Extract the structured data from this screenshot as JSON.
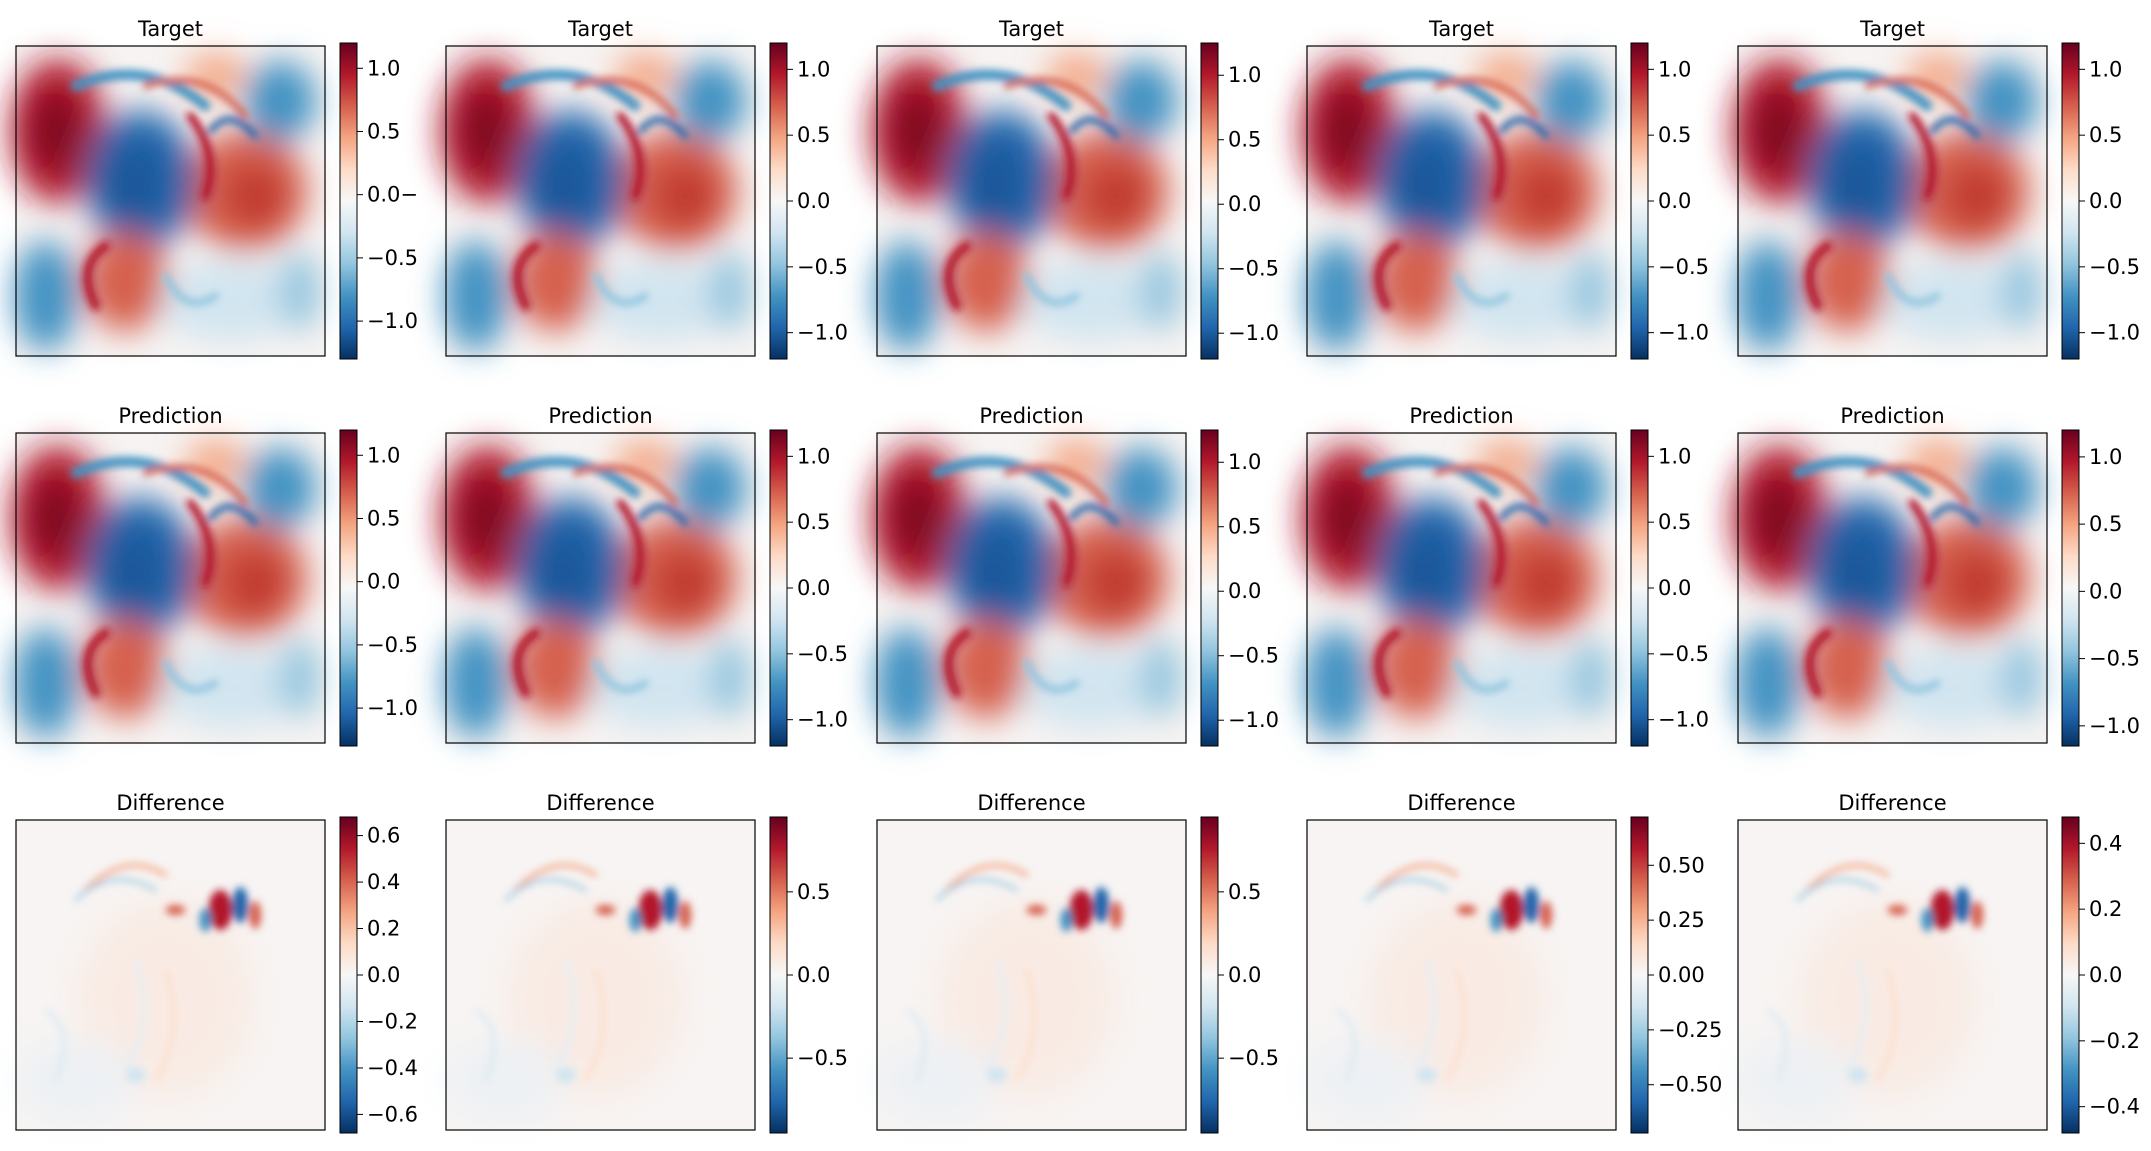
{
  "chart_data": [
    {
      "type": "heatmap",
      "title": "Target",
      "row": 0,
      "col": 0,
      "colorbar": {
        "min": -1.3,
        "max": 1.2,
        "ticks": [
          1.0,
          0.5,
          0.0,
          -0.5,
          -1.0
        ],
        "labels": [
          "1.0",
          "0.5",
          "0.0−",
          "−0.5",
          "−1.0"
        ]
      }
    },
    {
      "type": "heatmap",
      "title": "Target",
      "row": 0,
      "col": 1,
      "colorbar": {
        "min": -1.2,
        "max": 1.2,
        "ticks": [
          1.0,
          0.5,
          0.0,
          -0.5,
          -1.0
        ],
        "labels": [
          "1.0",
          "0.5",
          "0.0",
          "−0.5",
          "−1.0"
        ]
      }
    },
    {
      "type": "heatmap",
      "title": "Target",
      "row": 0,
      "col": 2,
      "colorbar": {
        "min": -1.2,
        "max": 1.25,
        "ticks": [
          1.0,
          0.5,
          0.0,
          -0.5,
          -1.0
        ],
        "labels": [
          "1.0",
          "0.5",
          "0.0",
          "−0.5",
          "−1.0"
        ]
      }
    },
    {
      "type": "heatmap",
      "title": "Target",
      "row": 0,
      "col": 3,
      "colorbar": {
        "min": -1.2,
        "max": 1.2,
        "ticks": [
          1.0,
          0.5,
          0.0,
          -0.5,
          -1.0
        ],
        "labels": [
          "1.0",
          "0.5",
          "0.0",
          "−0.5",
          "−1.0"
        ]
      }
    },
    {
      "type": "heatmap",
      "title": "Target",
      "row": 0,
      "col": 4,
      "colorbar": {
        "min": -1.2,
        "max": 1.2,
        "ticks": [
          1.0,
          0.5,
          0.0,
          -0.5,
          -1.0
        ],
        "labels": [
          "1.0",
          "0.5",
          "0.0",
          "−0.5",
          "−1.0"
        ]
      }
    },
    {
      "type": "heatmap",
      "title": "Prediction",
      "row": 1,
      "col": 0,
      "colorbar": {
        "min": -1.3,
        "max": 1.2,
        "ticks": [
          1.0,
          0.5,
          0.0,
          -0.5,
          -1.0
        ],
        "labels": [
          "1.0",
          "0.5",
          "0.0",
          "−0.5",
          "−1.0"
        ]
      }
    },
    {
      "type": "heatmap",
      "title": "Prediction",
      "row": 1,
      "col": 1,
      "colorbar": {
        "min": -1.2,
        "max": 1.2,
        "ticks": [
          1.0,
          0.5,
          0.0,
          -0.5,
          -1.0
        ],
        "labels": [
          "1.0",
          "0.5",
          "0.0",
          "−0.5",
          "−1.0"
        ]
      }
    },
    {
      "type": "heatmap",
      "title": "Prediction",
      "row": 1,
      "col": 2,
      "colorbar": {
        "min": -1.2,
        "max": 1.25,
        "ticks": [
          1.0,
          0.5,
          0.0,
          -0.5,
          -1.0
        ],
        "labels": [
          "1.0",
          "0.5",
          "0.0",
          "−0.5",
          "−1.0"
        ]
      }
    },
    {
      "type": "heatmap",
      "title": "Prediction",
      "row": 1,
      "col": 3,
      "colorbar": {
        "min": -1.2,
        "max": 1.2,
        "ticks": [
          1.0,
          0.5,
          0.0,
          -0.5,
          -1.0
        ],
        "labels": [
          "1.0",
          "0.5",
          "0.0",
          "−0.5",
          "−1.0"
        ]
      }
    },
    {
      "type": "heatmap",
      "title": "Prediction",
      "row": 1,
      "col": 4,
      "colorbar": {
        "min": -1.15,
        "max": 1.2,
        "ticks": [
          1.0,
          0.5,
          0.0,
          -0.5,
          -1.0
        ],
        "labels": [
          "1.0",
          "0.5",
          "0.0",
          "−0.5",
          "−1.0"
        ]
      }
    },
    {
      "type": "heatmap",
      "title": "Difference",
      "row": 2,
      "col": 0,
      "colorbar": {
        "min": -0.68,
        "max": 0.68,
        "ticks": [
          0.6,
          0.4,
          0.2,
          0.0,
          -0.2,
          -0.4,
          -0.6
        ],
        "labels": [
          "0.6",
          "0.4",
          "0.2",
          "0.0",
          "−0.2",
          "−0.4",
          "−0.6"
        ]
      }
    },
    {
      "type": "heatmap",
      "title": "Difference",
      "row": 2,
      "col": 1,
      "colorbar": {
        "min": -0.95,
        "max": 0.95,
        "ticks": [
          0.5,
          0.0,
          -0.5
        ],
        "labels": [
          "0.5",
          "0.0",
          "−0.5"
        ]
      }
    },
    {
      "type": "heatmap",
      "title": "Difference",
      "row": 2,
      "col": 2,
      "colorbar": {
        "min": -0.95,
        "max": 0.95,
        "ticks": [
          0.5,
          0.0,
          -0.5
        ],
        "labels": [
          "0.5",
          "0.0",
          "−0.5"
        ]
      }
    },
    {
      "type": "heatmap",
      "title": "Difference",
      "row": 2,
      "col": 3,
      "colorbar": {
        "min": -0.72,
        "max": 0.72,
        "ticks": [
          0.5,
          0.25,
          0.0,
          -0.25,
          -0.5
        ],
        "labels": [
          "0.50",
          "0.25",
          "0.00",
          "−0.25",
          "−0.50"
        ]
      }
    },
    {
      "type": "heatmap",
      "title": "Difference",
      "row": 2,
      "col": 4,
      "colorbar": {
        "min": -0.48,
        "max": 0.48,
        "ticks": [
          0.4,
          0.2,
          0.0,
          -0.2,
          -0.4
        ],
        "labels": [
          "0.4",
          "0.2",
          "0.0",
          "−0.2",
          "−0.4"
        ]
      }
    }
  ]
}
